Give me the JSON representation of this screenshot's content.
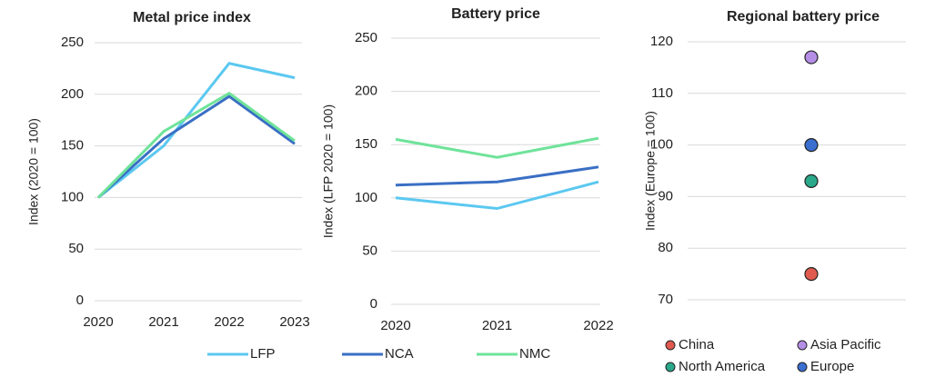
{
  "chart_data": [
    {
      "type": "line",
      "title": "Metal price index",
      "y_label": "Index (2020 = 100)",
      "categories": [
        "2020",
        "2021",
        "2022",
        "2023"
      ],
      "series": [
        {
          "name": "LFP",
          "color": "#5bc8f0",
          "values": [
            100,
            150,
            230,
            216
          ]
        },
        {
          "name": "NCA",
          "color": "#3a6fc4",
          "values": [
            100,
            157,
            198,
            152
          ]
        },
        {
          "name": "NMC",
          "color": "#6fe39a",
          "values": [
            100,
            164,
            201,
            155
          ]
        }
      ],
      "ylim": [
        0,
        250
      ],
      "yticks": [
        0,
        50,
        100,
        150,
        200,
        250
      ],
      "grid": true
    },
    {
      "type": "line",
      "title": "Battery price",
      "y_label": "Index (LFP 2020 = 100)",
      "categories": [
        "2020",
        "2021",
        "2022"
      ],
      "series": [
        {
          "name": "LFP",
          "color": "#5bc8f0",
          "values": [
            100,
            90,
            115
          ]
        },
        {
          "name": "NCA",
          "color": "#3a6fc4",
          "values": [
            112,
            115,
            129
          ]
        },
        {
          "name": "NMC",
          "color": "#6fe39a",
          "values": [
            155,
            138,
            156
          ]
        }
      ],
      "ylim": [
        0,
        250
      ],
      "yticks": [
        0,
        50,
        100,
        150,
        200,
        250
      ],
      "grid": true
    },
    {
      "type": "scatter",
      "title": "Regional battery price",
      "y_label": "Index (Europe = 100)",
      "series": [
        {
          "name": "China",
          "color": "#e05a4f",
          "values": [
            75
          ]
        },
        {
          "name": "Asia Pacific",
          "color": "#b58ee6",
          "values": [
            117
          ]
        },
        {
          "name": "North America",
          "color": "#2aa88a",
          "values": [
            93
          ]
        },
        {
          "name": "Europe",
          "color": "#3a6fd0",
          "values": [
            100
          ]
        }
      ],
      "ylim": [
        70,
        120
      ],
      "yticks": [
        70,
        80,
        90,
        100,
        110,
        120
      ],
      "grid": true
    }
  ]
}
